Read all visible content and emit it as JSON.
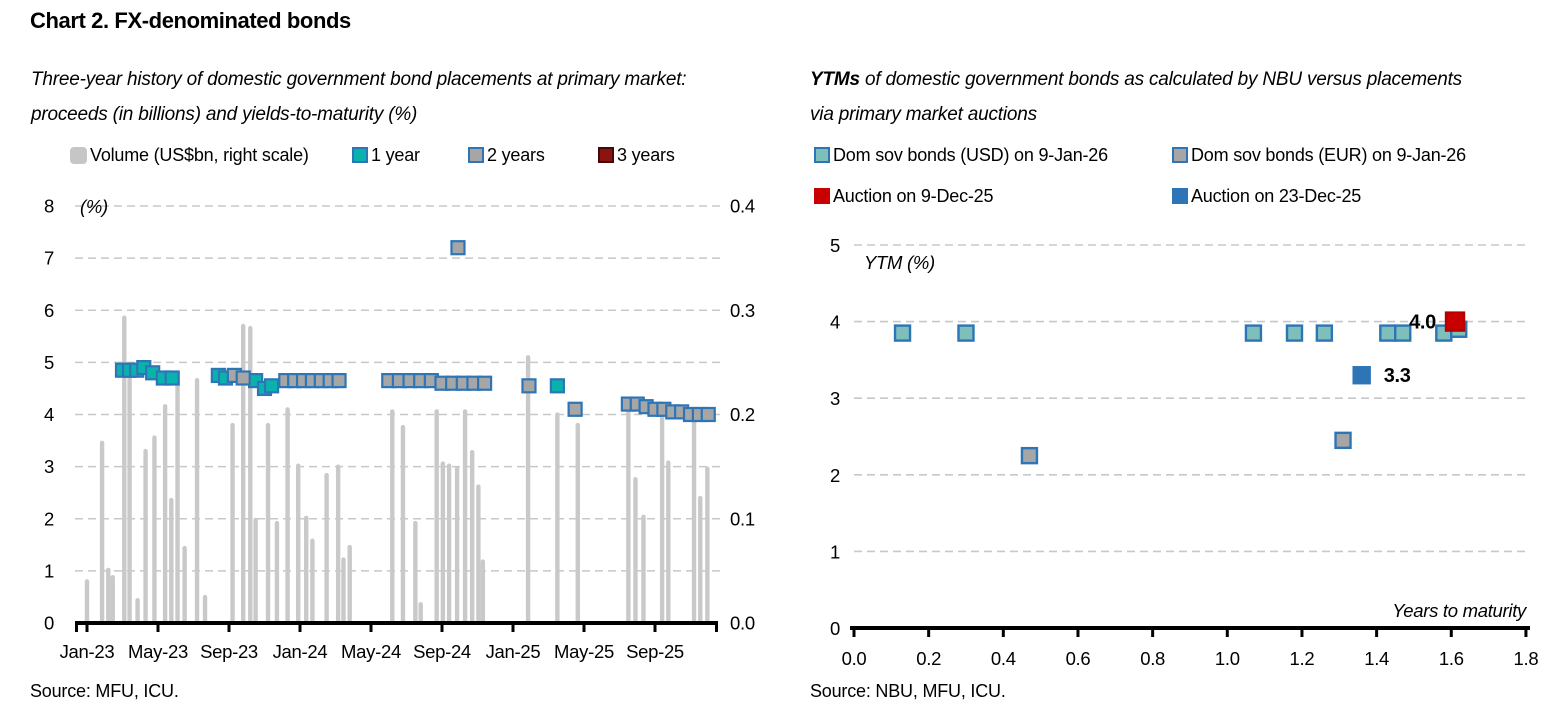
{
  "page": {
    "title": "Chart 2. FX-denominated bonds",
    "background": "#FFFFFF"
  },
  "left_chart": {
    "subtitle_line1": "Three-year history of domestic government bond placements at primary market:",
    "subtitle_line2": "proceeds (in billions) and yields-to-maturity (%)",
    "y_left_note": "(%)",
    "source": "Source: MFU, ICU.",
    "legend": [
      {
        "label": "Volume (US$bn, right scale)",
        "fill": "#C6C6C6",
        "stroke": "#C6C6C6"
      },
      {
        "label": "1 year",
        "fill": "#0AB2AE",
        "stroke": "#2E75B6"
      },
      {
        "label": "2 years",
        "fill": "#A6A6A6",
        "stroke": "#2E75B6"
      },
      {
        "label": "3 years",
        "fill": "#8A1410",
        "stroke": "#45080B"
      }
    ]
  },
  "right_chart": {
    "title_bold": "YTMs",
    "title_rest": " of domestic government bonds as calculated by NBU versus placements",
    "title_line2": "via primary market auctions",
    "y_axis_note": "YTM (%)",
    "x_axis_label": "Years to maturity",
    "source": "Source: NBU, MFU, ICU.",
    "legend": [
      {
        "label": "Dom sov bonds (USD) on 9-Jan-26",
        "fill": "#7FBFBB",
        "stroke": "#2E75B6"
      },
      {
        "label": "Dom sov bonds (EUR) on 9-Jan-26",
        "fill": "#A6A6A6",
        "stroke": "#2E75B6"
      },
      {
        "label": "Auction on 9-Dec-25",
        "fill": "#C80000",
        "stroke": "#C80000"
      },
      {
        "label": "Auction on 23-Dec-25",
        "fill": "#2E75B6",
        "stroke": "#2E75B6"
      }
    ]
  },
  "chart_data": [
    {
      "id": "fx-bond-placements-history",
      "type": "bar+scatter",
      "title": "Three-year history of domestic government bond placements at primary market: proceeds (in billions) and yields-to-maturity (%)",
      "grid": "horizontal-dashed",
      "legend_position": "top",
      "x_axis": {
        "unit": "months since Jan-2023",
        "tick_labels": [
          "Jan-23",
          "May-23",
          "Sep-23",
          "Jan-24",
          "May-24",
          "Sep-24",
          "Jan-25",
          "May-25",
          "Sep-25"
        ],
        "tick_positions": [
          0,
          4,
          8,
          12,
          16,
          20,
          24,
          28,
          32
        ],
        "max_month": 35.5
      },
      "y_left": {
        "label": "(%)",
        "min": 0,
        "max": 8,
        "tick_labels": [
          "0",
          "1",
          "2",
          "3",
          "4",
          "5",
          "6",
          "7",
          "8"
        ]
      },
      "y_right": {
        "label": "Volume (US$bn)",
        "min": 0,
        "max": 0.4,
        "tick_labels": [
          "0.0",
          "0.1",
          "0.2",
          "0.3",
          "0.4"
        ]
      },
      "bars": {
        "name": "Volume (US$bn, right scale)",
        "color": "#C9C9C9",
        "scale": "right",
        "points": [
          [
            0,
            0.042
          ],
          [
            0.85,
            0.175
          ],
          [
            1.2,
            0.053
          ],
          [
            1.45,
            0.046
          ],
          [
            2.1,
            0.295
          ],
          [
            2.4,
            0.24
          ],
          [
            2.85,
            0.024
          ],
          [
            3.3,
            0.167
          ],
          [
            3.8,
            0.18
          ],
          [
            4.4,
            0.21
          ],
          [
            4.75,
            0.12
          ],
          [
            5.1,
            0.235
          ],
          [
            5.5,
            0.074
          ],
          [
            6.2,
            0.235
          ],
          [
            6.65,
            0.027
          ],
          [
            8.2,
            0.192
          ],
          [
            8.8,
            0.287
          ],
          [
            9.2,
            0.285
          ],
          [
            9.5,
            0.101
          ],
          [
            10.2,
            0.192
          ],
          [
            10.7,
            0.098
          ],
          [
            11.3,
            0.207
          ],
          [
            11.9,
            0.153
          ],
          [
            12.35,
            0.103
          ],
          [
            12.7,
            0.081
          ],
          [
            13.5,
            0.144
          ],
          [
            14.15,
            0.152
          ],
          [
            14.45,
            0.063
          ],
          [
            14.8,
            0.075
          ],
          [
            17.2,
            0.205
          ],
          [
            17.8,
            0.19
          ],
          [
            18.5,
            0.098
          ],
          [
            18.8,
            0.02
          ],
          [
            19.7,
            0.205
          ],
          [
            20.05,
            0.155
          ],
          [
            20.4,
            0.153
          ],
          [
            20.85,
            0.15
          ],
          [
            21.3,
            0.205
          ],
          [
            21.7,
            0.166
          ],
          [
            22.05,
            0.133
          ],
          [
            22.3,
            0.061
          ],
          [
            24.85,
            0.257
          ],
          [
            26.5,
            0.202
          ],
          [
            27.65,
            0.192
          ],
          [
            30.5,
            0.205
          ],
          [
            30.9,
            0.14
          ],
          [
            31.35,
            0.104
          ],
          [
            32.4,
            0.2
          ],
          [
            32.75,
            0.156
          ],
          [
            34.2,
            0.195
          ],
          [
            34.55,
            0.122
          ],
          [
            34.95,
            0.15
          ]
        ]
      },
      "series": [
        {
          "name": "1 year",
          "fill": "#0AB2AE",
          "stroke": "#2E75B6",
          "points": [
            [
              2.0,
              4.85
            ],
            [
              2.4,
              4.85
            ],
            [
              2.8,
              4.85
            ],
            [
              3.2,
              4.9
            ],
            [
              3.7,
              4.8
            ],
            [
              4.3,
              4.7
            ],
            [
              4.8,
              4.7
            ],
            [
              7.4,
              4.75
            ],
            [
              7.8,
              4.7
            ],
            [
              9.5,
              4.65
            ],
            [
              10.0,
              4.5
            ],
            [
              10.4,
              4.55
            ],
            [
              26.5,
              4.55
            ]
          ]
        },
        {
          "name": "2 years",
          "fill": "#A6A6A6",
          "stroke": "#2E75B6",
          "points": [
            [
              8.3,
              4.75
            ],
            [
              8.8,
              4.7
            ],
            [
              11.2,
              4.65
            ],
            [
              11.7,
              4.65
            ],
            [
              12.2,
              4.65
            ],
            [
              12.7,
              4.65
            ],
            [
              13.2,
              4.65
            ],
            [
              13.7,
              4.65
            ],
            [
              14.2,
              4.65
            ],
            [
              17.0,
              4.65
            ],
            [
              17.6,
              4.65
            ],
            [
              18.2,
              4.65
            ],
            [
              18.8,
              4.65
            ],
            [
              19.4,
              4.65
            ],
            [
              20.0,
              4.6
            ],
            [
              20.6,
              4.6
            ],
            [
              20.9,
              7.2
            ],
            [
              21.2,
              4.6
            ],
            [
              21.8,
              4.6
            ],
            [
              22.4,
              4.6
            ],
            [
              24.9,
              4.55
            ],
            [
              27.5,
              4.1
            ],
            [
              30.5,
              4.2
            ],
            [
              31.0,
              4.2
            ],
            [
              31.5,
              4.15
            ],
            [
              32.0,
              4.1
            ],
            [
              32.5,
              4.1
            ],
            [
              33.0,
              4.05
            ],
            [
              33.5,
              4.05
            ],
            [
              34.0,
              4.0
            ],
            [
              34.5,
              4.0
            ],
            [
              35.0,
              4.0
            ]
          ]
        },
        {
          "name": "3 years",
          "fill": "#8A1410",
          "stroke": "#45080B",
          "points": []
        }
      ]
    },
    {
      "id": "ytm-vs-years-to-maturity",
      "type": "scatter",
      "title": "YTMs of domestic government bonds as calculated by NBU versus placements via primary market auctions",
      "grid": "horizontal-dashed",
      "legend_position": "top",
      "x_axis": {
        "label": "Years to maturity",
        "min": 0,
        "max": 1.8,
        "tick_labels": [
          "0.0",
          "0.2",
          "0.4",
          "0.6",
          "0.8",
          "1.0",
          "1.2",
          "1.4",
          "1.6",
          "1.8"
        ]
      },
      "y_axis": {
        "label": "YTM (%)",
        "min": 0,
        "max": 5,
        "tick_labels": [
          "0",
          "1",
          "2",
          "3",
          "4",
          "5"
        ]
      },
      "series": [
        {
          "name": "Dom sov bonds (USD) on 9-Jan-26",
          "fill": "#7FBFBB",
          "stroke": "#2E75B6",
          "size": 15,
          "points": [
            [
              0.13,
              3.85
            ],
            [
              0.3,
              3.85
            ],
            [
              1.07,
              3.85
            ],
            [
              1.18,
              3.85
            ],
            [
              1.26,
              3.85
            ],
            [
              1.43,
              3.85
            ],
            [
              1.47,
              3.85
            ],
            [
              1.58,
              3.85
            ],
            [
              1.62,
              3.9
            ]
          ]
        },
        {
          "name": "Dom sov bonds (EUR) on 9-Jan-26",
          "fill": "#A6A6A6",
          "stroke": "#2E75B6",
          "size": 15,
          "points": [
            [
              0.47,
              2.25
            ],
            [
              1.31,
              2.45
            ]
          ]
        },
        {
          "name": "Auction on 9-Dec-25",
          "fill": "#C80000",
          "stroke": "#B50000",
          "size": 18,
          "points": [
            [
              1.61,
              4.0
            ]
          ],
          "point_label": "4.0",
          "label_side": "left"
        },
        {
          "name": "Auction on 23-Dec-25",
          "fill": "#2E75B6",
          "stroke": "#2E75B6",
          "size": 16,
          "points": [
            [
              1.36,
              3.3
            ]
          ],
          "point_label": "3.3",
          "label_side": "right"
        }
      ]
    }
  ]
}
